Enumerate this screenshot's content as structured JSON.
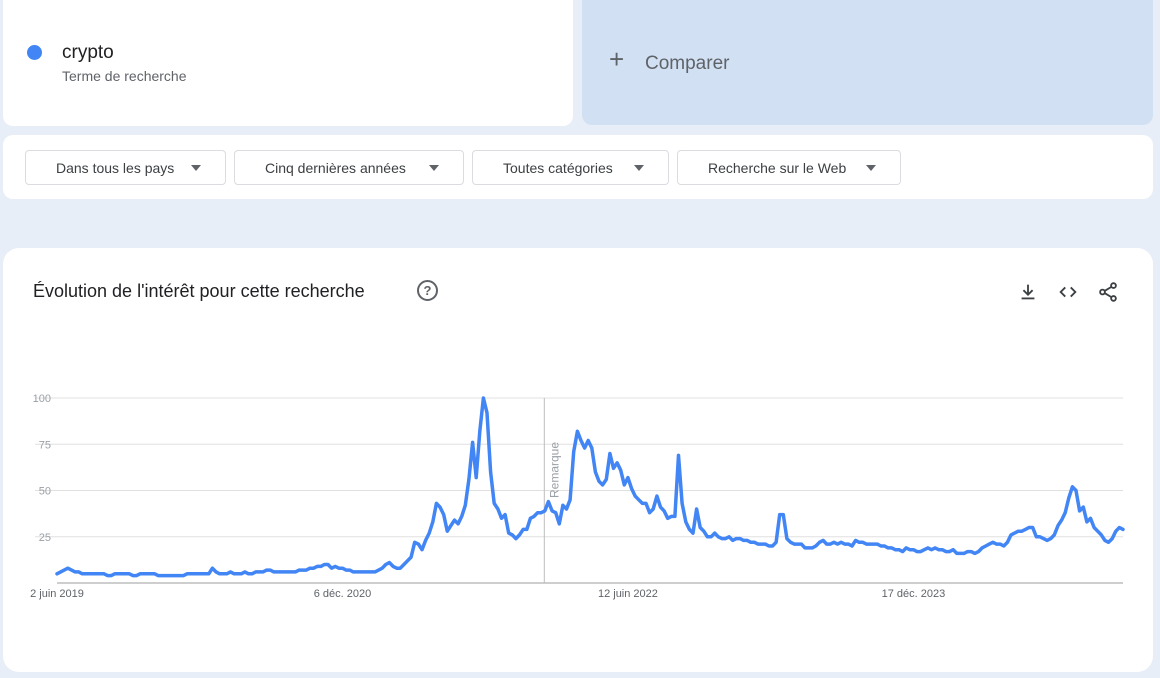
{
  "term": {
    "name": "crypto",
    "subtitle": "Terme de recherche",
    "color": "#4285f4"
  },
  "compare": {
    "label": "Comparer",
    "icon": "plus-icon"
  },
  "filters": [
    {
      "label": "Dans tous les pays"
    },
    {
      "label": "Cinq dernières années"
    },
    {
      "label": "Toutes catégories"
    },
    {
      "label": "Recherche sur le Web"
    }
  ],
  "panel": {
    "title": "Évolution de l'intérêt pour cette recherche",
    "icons": [
      "help-icon",
      "download-icon",
      "embed-icon",
      "share-icon"
    ]
  },
  "chart_data": {
    "type": "line",
    "title": "Évolution de l'intérêt pour cette recherche",
    "xlabel": "",
    "ylabel": "",
    "ylim": [
      0,
      100
    ],
    "yticks": [
      25,
      50,
      75,
      100
    ],
    "grid": true,
    "x_tick_labels": [
      "2 juin 2019",
      "6 déc. 2020",
      "12 juin 2022",
      "17 déc. 2023"
    ],
    "annotation": {
      "text": "Remarque",
      "date": "2022-01-01"
    },
    "series": [
      {
        "name": "crypto",
        "color": "#4285f4",
        "start": "2019-06-02",
        "interval_days": 7,
        "values": [
          5,
          6,
          7,
          8,
          7,
          6,
          6,
          5,
          5,
          5,
          5,
          5,
          5,
          5,
          4,
          4,
          5,
          5,
          5,
          5,
          5,
          4,
          4,
          5,
          5,
          5,
          5,
          5,
          4,
          4,
          4,
          4,
          4,
          4,
          4,
          4,
          5,
          5,
          5,
          5,
          5,
          5,
          5,
          8,
          6,
          5,
          5,
          5,
          6,
          5,
          5,
          5,
          6,
          5,
          5,
          6,
          6,
          6,
          7,
          7,
          6,
          6,
          6,
          6,
          6,
          6,
          6,
          7,
          7,
          7,
          8,
          8,
          9,
          9,
          10,
          10,
          8,
          9,
          8,
          8,
          7,
          7,
          6,
          6,
          6,
          6,
          6,
          6,
          6,
          7,
          8,
          10,
          11,
          9,
          8,
          8,
          10,
          12,
          14,
          22,
          21,
          18,
          23,
          27,
          33,
          43,
          41,
          37,
          28,
          31,
          34,
          32,
          36,
          42,
          56,
          76,
          57,
          82,
          100,
          92,
          60,
          43,
          40,
          35,
          37,
          27,
          26,
          24,
          26,
          29,
          29,
          35,
          36,
          38,
          38,
          39,
          44,
          39,
          38,
          32,
          42,
          40,
          45,
          71,
          82,
          77,
          73,
          77,
          73,
          60,
          55,
          53,
          56,
          70,
          62,
          65,
          61,
          53,
          57,
          51,
          47,
          45,
          43,
          43,
          38,
          40,
          47,
          41,
          39,
          35,
          36,
          36,
          69,
          43,
          33,
          29,
          27,
          40,
          30,
          28,
          25,
          25,
          27,
          25,
          24,
          24,
          25,
          23,
          24,
          24,
          23,
          23,
          22,
          22,
          21,
          21,
          21,
          20,
          20,
          22,
          37,
          37,
          24,
          22,
          21,
          21,
          21,
          19,
          19,
          19,
          20,
          22,
          23,
          21,
          21,
          22,
          21,
          22,
          21,
          21,
          20,
          23,
          22,
          22,
          21,
          21,
          21,
          21,
          20,
          20,
          19,
          19,
          18,
          18,
          17,
          19,
          18,
          18,
          17,
          17,
          18,
          19,
          18,
          19,
          18,
          18,
          17,
          17,
          18,
          16,
          16,
          16,
          17,
          17,
          16,
          17,
          19,
          20,
          21,
          22,
          21,
          21,
          20,
          22,
          26,
          27,
          28,
          28,
          29,
          30,
          30,
          25,
          25,
          24,
          23,
          24,
          26,
          31,
          34,
          38,
          46,
          52,
          50,
          39,
          41,
          33,
          35,
          30,
          28,
          26,
          23,
          22,
          24,
          28,
          30,
          29
        ]
      }
    ]
  }
}
